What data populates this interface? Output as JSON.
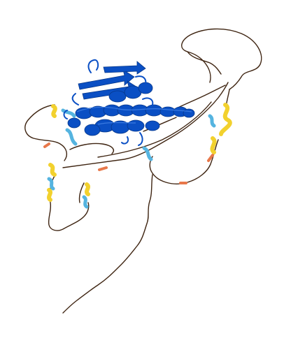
{
  "image": {
    "subject": "protein-structure-cartoon",
    "background_color": "#ffffff",
    "colors": {
      "very_high_confidence": "#0a4fc4",
      "confident": "#55b4e0",
      "low_confidence": "#f2d12e",
      "very_low_confidence": "#3e2411",
      "coil_highlight": "#e8784a"
    }
  }
}
